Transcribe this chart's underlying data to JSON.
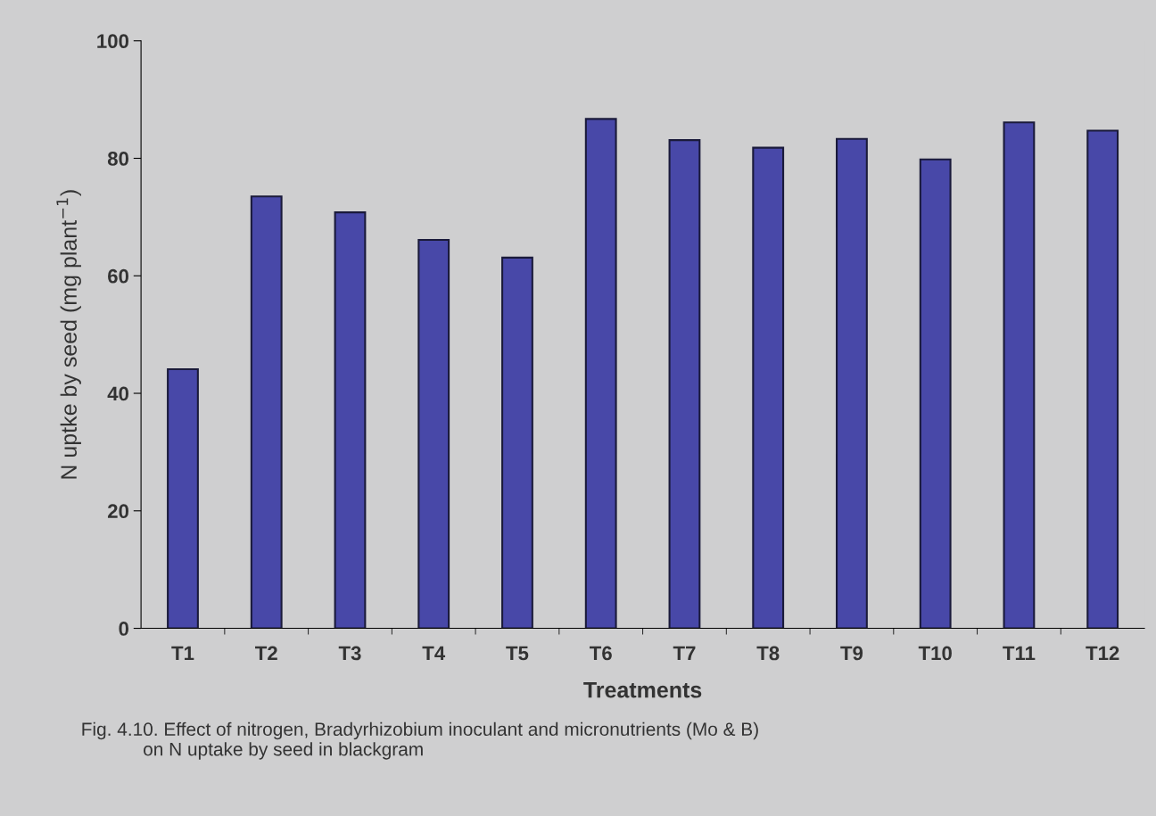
{
  "chart_data": {
    "type": "bar",
    "xlabel": "Treatments",
    "ylabel": "N uptke by seed (mg plant$^{−1}$)",
    "categories": [
      "T1",
      "T2",
      "T3",
      "T4",
      "T5",
      "T6",
      "T7",
      "T8",
      "T9",
      "T10",
      "T11",
      "T12"
    ],
    "values": [
      44.1,
      73.5,
      70.8,
      66.1,
      63.1,
      86.7,
      83.1,
      81.8,
      83.3,
      79.8,
      86.1,
      84.7
    ],
    "color": "#4848a8",
    "ylim": [
      0,
      100
    ],
    "yticks": [
      0,
      20,
      40,
      60,
      80,
      100
    ],
    "grid": false,
    "annotations": [
      "Fig. 4.10. Effect of nitrogen, Bradyrhizobium inoculant and micronutrients (Mo & B)\n            on N uptake by seed in blackgram"
    ]
  }
}
